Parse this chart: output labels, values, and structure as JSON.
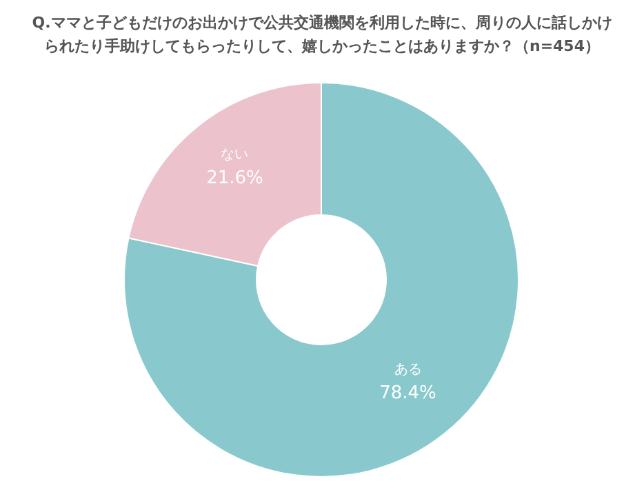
{
  "chart_data": {
    "type": "donut",
    "title": "Q.ママと子どもだけのお出かけで公共交通機関を利用した時に、周りの人に話しかけられたり手助けしてもらったりして、嬉しかったことはありますか？（n=454）",
    "categories": [
      "ある",
      "ない"
    ],
    "values": [
      78.4,
      21.6
    ],
    "colors": [
      "#89c9ce",
      "#ecc2cd"
    ],
    "value_labels": [
      "78.4%",
      "21.6%"
    ],
    "legend": false
  }
}
